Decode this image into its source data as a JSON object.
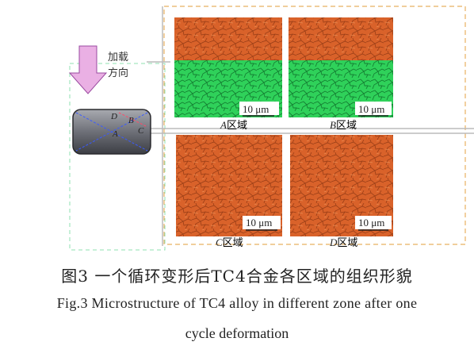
{
  "figure": {
    "load_label_line1": "加载",
    "load_label_line2": "方向",
    "specimen_labels": {
      "a": "A",
      "b": "B",
      "c": "C",
      "d": "D"
    },
    "panels": [
      {
        "zone_letter": "A",
        "zone_suffix": "区域",
        "scale": "10 μm"
      },
      {
        "zone_letter": "B",
        "zone_suffix": "区域",
        "scale": "10 μm"
      },
      {
        "zone_letter": "C",
        "zone_suffix": "区域",
        "scale": "10 μm"
      },
      {
        "zone_letter": "D",
        "zone_suffix": "区域",
        "scale": "10 μm"
      }
    ],
    "colors": {
      "grain_orange": "#d9622a",
      "grain_green": "#2fd15a",
      "dash_border": "#e8b060",
      "arrow_pink": "#e8a0d8"
    }
  },
  "caption": {
    "zh": "图3    一个循环变形后TC4合金各区域的组织形貌",
    "en_line1": "Fig.3    Microstructure of TC4 alloy in different zone after one",
    "en_line2": "cycle deformation"
  }
}
